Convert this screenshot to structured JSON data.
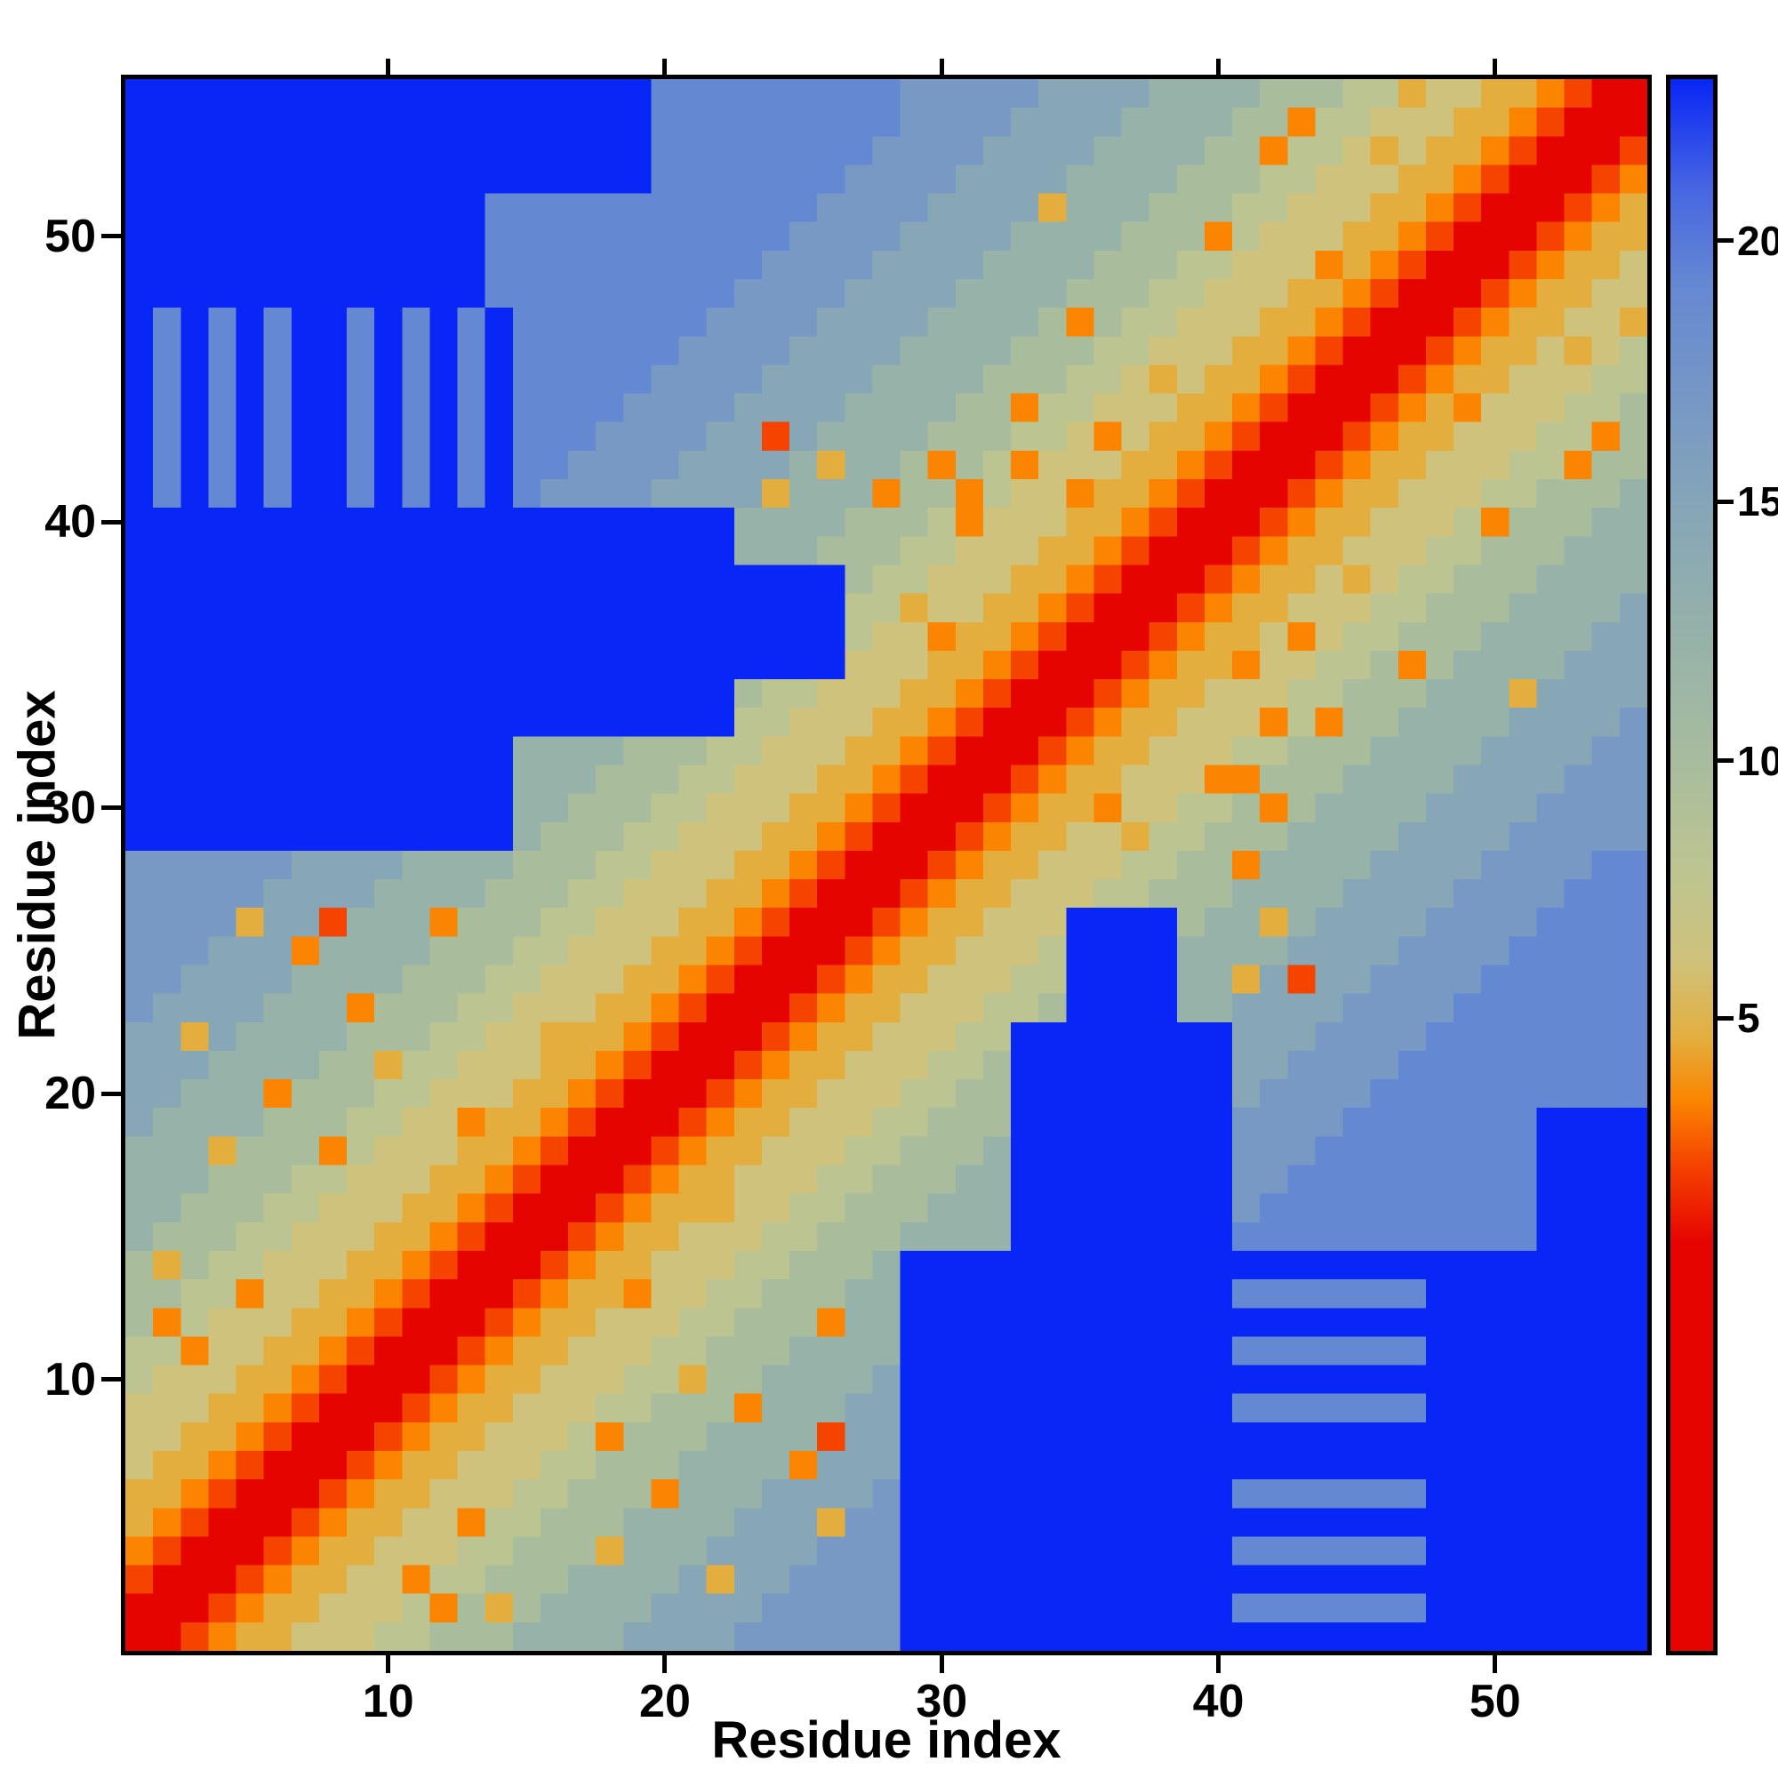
{
  "chart_data": {
    "type": "heatmap",
    "title": "",
    "xlabel": "Residue index",
    "ylabel": "Residue index",
    "n_residues": 55,
    "xlim": [
      0.5,
      55.5
    ],
    "ylim": [
      0.5,
      55.5
    ],
    "x_ticks": [
      10,
      20,
      30,
      40,
      50
    ],
    "y_ticks": [
      10,
      20,
      30,
      40,
      50
    ],
    "grid": false,
    "legend": "colorbar-right",
    "colorbar": {
      "ticks": [
        {
          "label": "20",
          "frac_from_top": 0.105
        },
        {
          "label": "15",
          "frac_from_top": 0.27
        },
        {
          "label": "10",
          "frac_from_top": 0.434
        },
        {
          "label": "5",
          "frac_from_top": 0.597
        }
      ],
      "gradient_stops": [
        {
          "pos": 0.0,
          "color": "#0826f5"
        },
        {
          "pos": 0.07,
          "color": "#4766e2"
        },
        {
          "pos": 0.13,
          "color": "#6588d2"
        },
        {
          "pos": 0.21,
          "color": "#7899c4"
        },
        {
          "pos": 0.28,
          "color": "#88a7b6"
        },
        {
          "pos": 0.36,
          "color": "#97b2a9"
        },
        {
          "pos": 0.44,
          "color": "#a9bd9d"
        },
        {
          "pos": 0.5,
          "color": "#bcc492"
        },
        {
          "pos": 0.56,
          "color": "#cfc27c"
        },
        {
          "pos": 0.61,
          "color": "#e3ae3e"
        },
        {
          "pos": 0.65,
          "color": "#fb8500"
        },
        {
          "pos": 0.69,
          "color": "#f54400"
        },
        {
          "pos": 0.74,
          "color": "#e60400"
        },
        {
          "pos": 1.0,
          "color": "#e60400"
        }
      ]
    },
    "value_of_level": {
      "0": 2,
      "1": 4,
      "2": 5.5,
      "3": 7,
      "4": 8.5,
      "5": 10,
      "6": 11.5,
      "7": 13,
      "8": 15,
      "9": 17,
      "a": 19,
      "b": 21,
      "c": 23
    },
    "palette": {
      "0": "#e60400",
      "1": "#f54400",
      "2": "#fb8500",
      "3": "#e3ae3e",
      "4": "#cfc27c",
      "5": "#bcc492",
      "6": "#a9bd9d",
      "7": "#97b2a9",
      "8": "#88a7b6",
      "9": "#7899c4",
      "a": "#6588d2",
      "b": "#4766e2",
      "c": "#0826f5"
    },
    "rows_order": "index 0 = residue 1 (bottom row of plot); each string char = level code for residue j=1..55",
    "matrix_rows": [
      "0012334445566677778888999999ccccccccccccccccccccccccccc",
      "0001233444526367777888899999ccccccccccccaaaaaaacccccccc",
      "1000123344255666777783889999ccccccccccccccccccccccccccc",
      "2100012334445566637778888999ccccccccccccaaaaaaacccccccc",
      "3210001233442556667777888399ccccccccccccccccccccccccccc",
      "3321000123344455666277788889ccccccccccccaaaaaaacccccccc",
      "4332100012334445566677772888ccccccccccccccccccccccccccc",
      "4433210001233444526667777188ccccccccccccccccccccccccccc",
      "4443321000123344455666277788ccccccccccccaaaaaaacccccccc",
      "5444332100012334445536677778ccccccccccccccccccccccccccc",
      "5524433210001233444556667777ccccccccccccaaaaaaacccccccc",
      "6254443321000123344455666277ccccccccccccccccccccccccccc",
      "6655244332100012332445566677ccccccccccccaaaaaaacccccccc",
      "6365544433210001233444556667ccccccccccccccccccccccccccc",
      "76665544433210001233444556667777ccccccccaaaaaaaaaaacccc",
      "77666554443321000123334455666777cccccccc9aaaaaaaaaacccc",
      "77766655444332100012334445566677cccccccc99aaaaaaaaacccc",
      "77736662544433210001233444556667cccccccc999aaaaaaaacccc",
      "87777666554423321000123344455666cccccccc9999aaaaaaacccc",
      "88777266655444332100012334445566cccccccc89999aaaaaaaaaa",
      "88877776635544433210001233444556cccccccc889999aaaaaaaaa",
      "88387777666554433321000123344455cccccccc8889999aaaaaaaa",
      "9888877726665544433210001233444556cccc7788889999aaaaaaa",
      "9988887777666554443321000123344455cccc77381889999aaaaaa",
      "9998882777766655444332100012334445cccc777788889999aaaaa",
      "9999388177726665544433210001233444cccc6773788889999aaaa",
      "9999988887777666554443321000123344455666777788889999aaa",
      "99999988887777666554443321000123344455662777788889999aa",
      "cccccccccccccc76665544433210001233443556667777888899999",
      "cccccccccccccc77666554443321000123324455626777788889999",
      "cccccccccccccc77766655444332100012334442266677778888999",
      "cccccccccccccc77776665544433210001233444556667777888899",
      "cccccccccccccccccccccc554443321000123344425266777788889",
      "cccccccccccccccccccccc655444332100012334445566677738888",
      "cccccccccccccccccccccccccc44433210001233244556267777888",
      "cccccccccccccccccccccccccc54423321000123342455666777788",
      "cccccccccccccccccccccccccc55344332100012334445566677778",
      "cccccccccccccccccccccccccc65544433210001233434556667777",
      "cccccccccccccccccccccc777666554443321000123344455666777",
      "cccccccccccccccccccccc777766652444332100012334445266677",
      "cacacaccacacaca9999888837772662544233210001233444556667",
      "cacacaccacacacaa999988887377626524443321000123344455266",
      "cacacaccacacacaaa99998818777766655424332100012334445526",
      "cacacaccacacacaaaa9999888877776625544433210001232444556",
      "cacacaccacacacaaaaa999988887777666554343321000123344455",
      "cacacaccacacacaaaaaa99998888777766655444332100012334345",
      "cacacaccacacacaaaaaaa9999888877776265544433210001233443",
      "cccccccccccccaaaaaaaaa999988887777666554443321000123344",
      "cccccccccccccaaaaaaaaaa99998888777766655444232100012334",
      "cccccccccccccaaaaaaaaaaa9999888877776662544433210001233",
      "cccccccccccccaaaaaaaaaaaa999988883777666554443321000123",
      "cccccccccccccccccccaaaaaaa99998888777766655444332100012",
      "cccccccccccccccccccaaaaaaaa9999888877776625543433210001",
      "cccccccccccccccccccaaaaaaaaa999988887777662554443321000",
      "cccccccccccccccccccaaaaaaaaa999998888777766655344332100"
    ]
  }
}
